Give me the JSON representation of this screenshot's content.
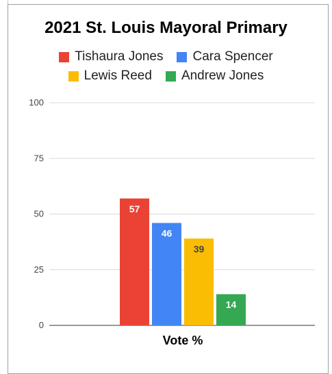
{
  "chart_data": {
    "type": "bar",
    "title": "2021 St. Louis Mayoral Primary",
    "categories": [
      "Vote %"
    ],
    "series": [
      {
        "name": "Tishaura Jones",
        "values": [
          57
        ],
        "color": "#ea4335",
        "label_color": "#ffffff"
      },
      {
        "name": "Cara Spencer",
        "values": [
          46
        ],
        "color": "#4285f4",
        "label_color": "#ffffff"
      },
      {
        "name": "Lewis Reed",
        "values": [
          39
        ],
        "color": "#fbbc04",
        "label_color": "#444444"
      },
      {
        "name": "Andrew Jones",
        "values": [
          14
        ],
        "color": "#34a853",
        "label_color": "#ffffff"
      }
    ],
    "xlabel": "Vote %",
    "ylabel": "",
    "ylim": [
      0,
      100
    ],
    "yticks": [
      0,
      25,
      50,
      75,
      100
    ],
    "ytick_labels": [
      "0",
      "25",
      "50",
      "75",
      "100"
    ],
    "grid": true,
    "legend_position": "top"
  }
}
